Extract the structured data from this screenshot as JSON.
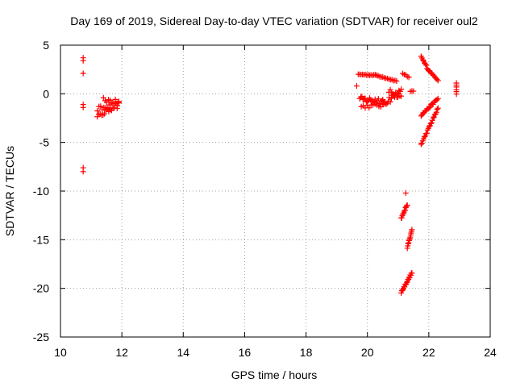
{
  "chart_data": {
    "type": "scatter",
    "title": "Day 169 of 2019, Sidereal Day-to-day VTEC variation (SDTVAR) for receiver oul2",
    "xlabel": "GPS time / hours",
    "ylabel": "SDTVAR / TECUs",
    "xlim": [
      10,
      24
    ],
    "ylim": [
      -25,
      5
    ],
    "xticks": [
      10,
      12,
      14,
      16,
      18,
      20,
      22,
      24
    ],
    "yticks": [
      -25,
      -20,
      -15,
      -10,
      -5,
      0,
      5
    ],
    "xtick_labels": [
      "10",
      "12",
      "14",
      "16",
      "18",
      "20",
      "22",
      "24"
    ],
    "ytick_labels": [
      "-25",
      "-20",
      "-15",
      "-10",
      "-5",
      "0",
      "5"
    ],
    "grid": true,
    "marker": "+",
    "color": "#ff0000",
    "series": [
      {
        "name": "SDTVAR",
        "segments": [
          {
            "x0": 10.74,
            "y0": 3.7,
            "x1": 10.74,
            "y1": 3.4,
            "n": 2,
            "jitter": 0
          },
          {
            "x0": 10.74,
            "y0": 2.1,
            "x1": 10.74,
            "y1": 2.1,
            "n": 1,
            "jitter": 0
          },
          {
            "x0": 10.74,
            "y0": -1.1,
            "x1": 10.74,
            "y1": -1.4,
            "n": 2,
            "jitter": 0
          },
          {
            "x0": 10.74,
            "y0": -7.6,
            "x1": 10.74,
            "y1": -8.0,
            "n": 2,
            "jitter": 0
          },
          {
            "x0": 11.2,
            "y0": -2.4,
            "x1": 11.9,
            "y1": -1.0,
            "n": 16,
            "jitter": 0.25
          },
          {
            "x0": 11.2,
            "y0": -1.6,
            "x1": 11.9,
            "y1": -1.2,
            "n": 14,
            "jitter": 0.3
          },
          {
            "x0": 11.4,
            "y0": -0.6,
            "x1": 11.9,
            "y1": -0.9,
            "n": 10,
            "jitter": 0.25
          },
          {
            "x0": 19.65,
            "y0": 0.8,
            "x1": 19.65,
            "y1": 0.8,
            "n": 1,
            "jitter": 0
          },
          {
            "x0": 19.7,
            "y0": 2.0,
            "x1": 20.3,
            "y1": 1.9,
            "n": 14,
            "jitter": 0.05
          },
          {
            "x0": 20.3,
            "y0": 1.9,
            "x1": 20.95,
            "y1": 1.3,
            "n": 14,
            "jitter": 0.05
          },
          {
            "x0": 21.15,
            "y0": 2.1,
            "x1": 21.35,
            "y1": 1.7,
            "n": 5,
            "jitter": 0.05
          },
          {
            "x0": 19.75,
            "y0": -0.6,
            "x1": 20.5,
            "y1": -0.7,
            "n": 22,
            "jitter": 0.35
          },
          {
            "x0": 19.8,
            "y0": -1.3,
            "x1": 20.5,
            "y1": -1.2,
            "n": 12,
            "jitter": 0.2
          },
          {
            "x0": 20.5,
            "y0": -1.0,
            "x1": 21.1,
            "y1": 0.2,
            "n": 18,
            "jitter": 0.35
          },
          {
            "x0": 20.7,
            "y0": 0.3,
            "x1": 21.1,
            "y1": -0.3,
            "n": 10,
            "jitter": 0.25
          },
          {
            "x0": 21.4,
            "y0": 0.2,
            "x1": 21.5,
            "y1": 0.3,
            "n": 3,
            "jitter": 0.05
          },
          {
            "x0": 21.75,
            "y0": 3.8,
            "x1": 22.0,
            "y1": 2.4,
            "n": 10,
            "jitter": 0.1
          },
          {
            "x0": 22.0,
            "y0": 2.4,
            "x1": 22.3,
            "y1": 1.4,
            "n": 10,
            "jitter": 0.05
          },
          {
            "x0": 21.75,
            "y0": -2.2,
            "x1": 22.3,
            "y1": -0.5,
            "n": 18,
            "jitter": 0.1
          },
          {
            "x0": 21.75,
            "y0": -5.2,
            "x1": 22.3,
            "y1": -1.5,
            "n": 22,
            "jitter": 0.1
          },
          {
            "x0": 22.9,
            "y0": 1.1,
            "x1": 22.9,
            "y1": 0.0,
            "n": 6,
            "jitter": 0.05
          },
          {
            "x0": 21.25,
            "y0": -10.2,
            "x1": 21.25,
            "y1": -10.2,
            "n": 1,
            "jitter": 0
          },
          {
            "x0": 21.1,
            "y0": -12.8,
            "x1": 21.3,
            "y1": -11.4,
            "n": 12,
            "jitter": 0.08
          },
          {
            "x0": 21.3,
            "y0": -15.8,
            "x1": 21.45,
            "y1": -14.0,
            "n": 12,
            "jitter": 0.08
          },
          {
            "x0": 21.1,
            "y0": -20.4,
            "x1": 21.45,
            "y1": -18.4,
            "n": 20,
            "jitter": 0.1
          }
        ]
      }
    ]
  }
}
